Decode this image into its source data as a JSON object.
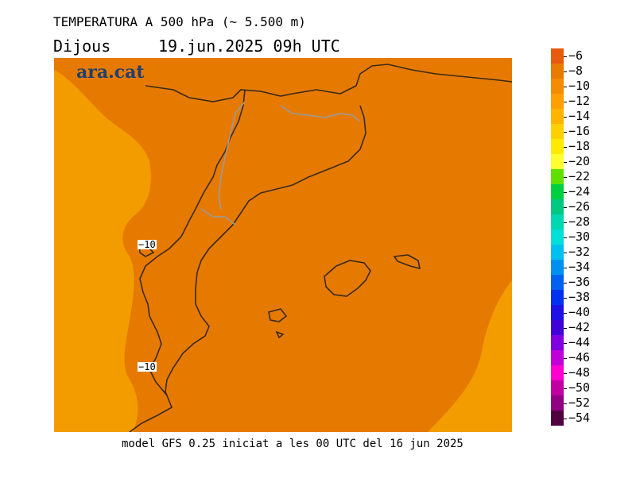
{
  "header": {
    "title": "TEMPERATURA A 500 hPa (~ 5.500 m)",
    "day": "Dijous",
    "datetime": "19.jun.2025 09h UTC"
  },
  "logo": {
    "text": "ara.cat"
  },
  "footer": {
    "text": "model GFS 0.25 iniciat a les 00 UTC del 16 jun 2025"
  },
  "contour_labels": [
    "−10",
    "−10"
  ],
  "colorbar": {
    "labels": [
      "−6",
      "−8",
      "−10",
      "−12",
      "−14",
      "−16",
      "−18",
      "−20",
      "−22",
      "−24",
      "−26",
      "−28",
      "−30",
      "−32",
      "−34",
      "−36",
      "−38",
      "−40",
      "−42",
      "−44",
      "−46",
      "−48",
      "−50",
      "−52",
      "−54"
    ],
    "colors": [
      "#e85a0c",
      "#e87a00",
      "#f58c00",
      "#ff9e00",
      "#ffb400",
      "#ffd000",
      "#ffea00",
      "#ffff30",
      "#60e000",
      "#00d040",
      "#00c880",
      "#00d8b0",
      "#00e0d8",
      "#00c0f0",
      "#0090f0",
      "#0060f0",
      "#0030f0",
      "#2010e8",
      "#4000d8",
      "#8000e0",
      "#c000d8",
      "#ff00d0",
      "#c000a0",
      "#900080",
      "#500040"
    ]
  }
}
